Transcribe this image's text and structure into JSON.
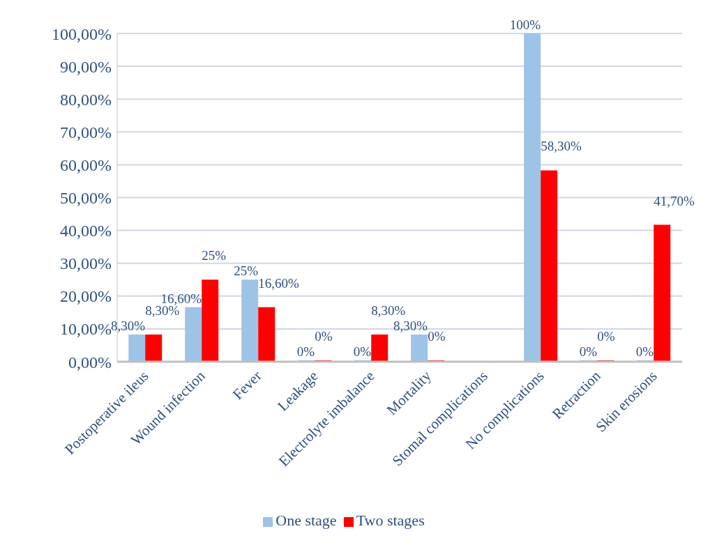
{
  "chart_data": {
    "type": "bar",
    "categories": [
      "Postoperative ileus",
      "Wound infection",
      "Fever",
      "Leakage",
      "Electrolyte imbalance",
      "Mortality",
      "Stomal complications",
      "No complications",
      "Retraction",
      "Skin erosions"
    ],
    "series": [
      {
        "name": "One stage",
        "color": "#9dc3e6",
        "values": [
          8.3,
          16.6,
          25,
          0,
          0,
          8.3,
          null,
          100,
          0,
          0
        ],
        "value_labels": [
          "8,30%",
          "16,60%",
          "25%",
          "0%",
          "0%",
          "8,30%",
          null,
          "100%",
          "0%",
          "0%"
        ]
      },
      {
        "name": "Two stages",
        "color": "#ff0000",
        "values": [
          8.3,
          25,
          16.6,
          0,
          8.3,
          0,
          null,
          58.3,
          0,
          41.7
        ],
        "value_labels": [
          "8,30%",
          "25%",
          "16,60%",
          "0%",
          "8,30%",
          "0%",
          null,
          "58,30%",
          "0%",
          "41,70%"
        ]
      }
    ],
    "ylim": [
      0,
      100
    ],
    "yticks": [
      {
        "value": 0,
        "label": "0,00%"
      },
      {
        "value": 10,
        "label": "10,00%"
      },
      {
        "value": 20,
        "label": "20,00%"
      },
      {
        "value": 30,
        "label": "30,00%"
      },
      {
        "value": 40,
        "label": "40,00%"
      },
      {
        "value": 50,
        "label": "50,00%"
      },
      {
        "value": 60,
        "label": "60,00%"
      },
      {
        "value": 70,
        "label": "70,00%"
      },
      {
        "value": 80,
        "label": "80,00%"
      },
      {
        "value": 90,
        "label": "90,00%"
      },
      {
        "value": 100,
        "label": "100,00%"
      }
    ],
    "grid": "y",
    "legend": "bottom"
  }
}
